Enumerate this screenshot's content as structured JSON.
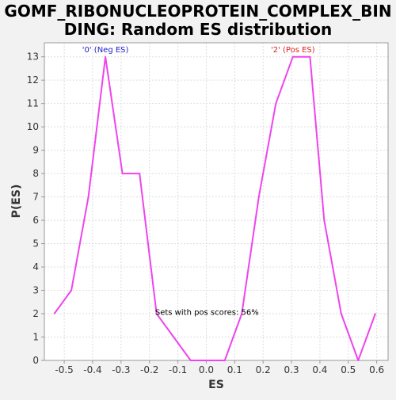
{
  "chart_data": {
    "type": "line",
    "title_line1": "GOMF_RIBONUCLEOPROTEIN_COMPLEX_BIN",
    "title_line2": "DING: Random ES distribution",
    "xlabel": "ES",
    "ylabel": "P(ES)",
    "xlim": [
      -0.57,
      0.64
    ],
    "ylim": [
      0,
      13.6
    ],
    "grid": true,
    "x_ticks": [
      -0.5,
      -0.4,
      -0.3,
      -0.2,
      -0.1,
      0.0,
      0.1,
      0.2,
      0.3,
      0.4,
      0.5,
      0.6
    ],
    "x_tick_labels": [
      "-0.5",
      "-0.4",
      "-0.3",
      "-0.2",
      "-0.1",
      "0.0",
      "0.1",
      "0.2",
      "0.3",
      "0.4",
      "0.5",
      "0.6"
    ],
    "y_ticks": [
      0,
      1,
      2,
      3,
      4,
      5,
      6,
      7,
      8,
      9,
      10,
      11,
      12,
      13
    ],
    "y_tick_labels": [
      "0",
      "1",
      "2",
      "3",
      "4",
      "5",
      "6",
      "7",
      "8",
      "9",
      "10",
      "11",
      "12",
      "13"
    ],
    "series": [
      {
        "color": "#ee44ee",
        "x": [
          -0.535,
          -0.475,
          -0.415,
          -0.355,
          -0.295,
          -0.235,
          -0.175,
          -0.115,
          -0.055,
          0.005,
          0.065,
          0.125,
          0.185,
          0.245,
          0.305,
          0.365,
          0.415,
          0.475,
          0.535,
          0.595
        ],
        "y": [
          2,
          3,
          7,
          13,
          8,
          8,
          2,
          1,
          0,
          0,
          0,
          2,
          7,
          11,
          13,
          13,
          6,
          2,
          0,
          2
        ]
      }
    ],
    "annotations": [
      {
        "text": "'0' (Neg ES)",
        "x": -0.355,
        "y": 13.2,
        "color": "#2222cc"
      },
      {
        "text": "'2' (Pos ES)",
        "x": 0.305,
        "y": 13.2,
        "color": "#dd2222"
      },
      {
        "text": "Sets with pos scores: 56%",
        "x": -0.18,
        "y": 1.95,
        "color": "#000000"
      }
    ]
  }
}
